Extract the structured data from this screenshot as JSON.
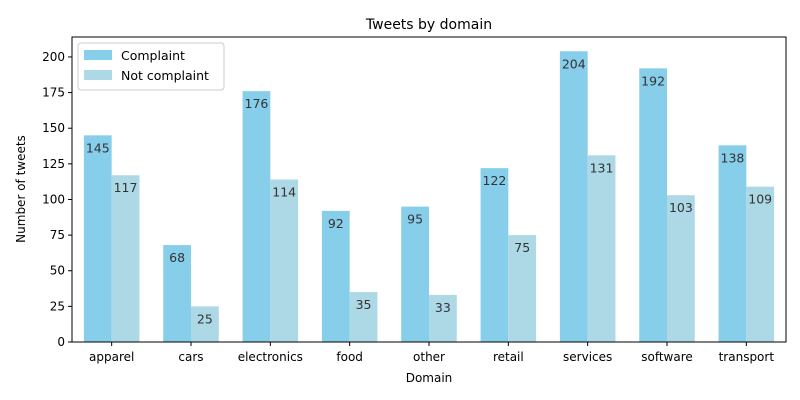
{
  "chart_data": {
    "type": "bar",
    "title": "Tweets by domain",
    "xlabel": "Domain",
    "ylabel": "Number of tweets",
    "categories": [
      "apparel",
      "cars",
      "electronics",
      "food",
      "other",
      "retail",
      "services",
      "software",
      "transport"
    ],
    "series": [
      {
        "name": "Complaint",
        "values": [
          145,
          68,
          176,
          92,
          95,
          122,
          204,
          192,
          138
        ],
        "color": "#87ceeb"
      },
      {
        "name": "Not complaint",
        "values": [
          117,
          25,
          114,
          35,
          33,
          75,
          131,
          103,
          109
        ],
        "color": "#add8e6"
      }
    ],
    "ylim": [
      0,
      214
    ],
    "yticks": [
      0,
      25,
      50,
      75,
      100,
      125,
      150,
      175,
      200
    ],
    "legend": "top-left",
    "grid": false
  }
}
